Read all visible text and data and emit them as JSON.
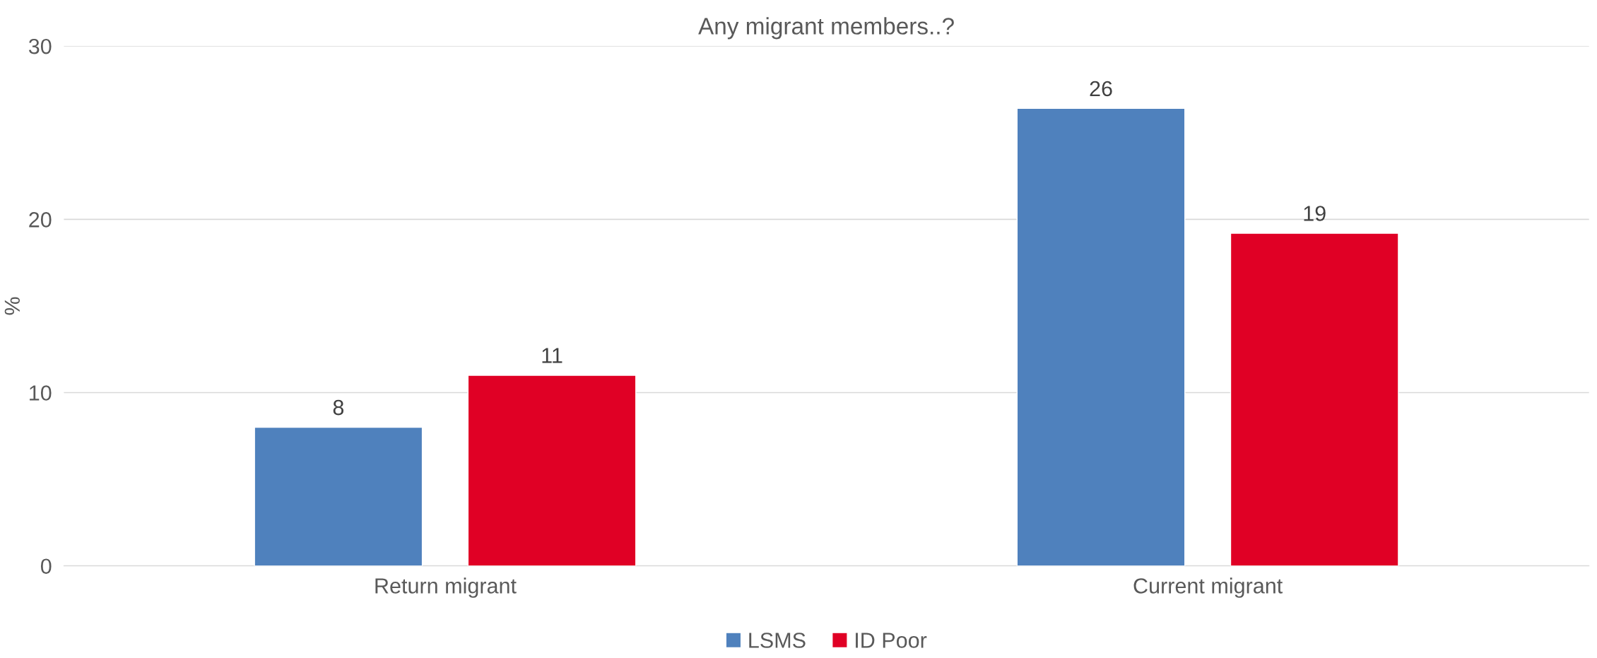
{
  "chart_data": {
    "type": "bar",
    "title": "Any migrant members..?",
    "ylabel": "%",
    "categories": [
      "Return migrant",
      "Current migrant"
    ],
    "series": [
      {
        "name": "LSMS",
        "color": "#4f81bd",
        "values": [
          8,
          26.4
        ],
        "value_labels": [
          "8",
          "26"
        ]
      },
      {
        "name": "ID Poor",
        "color": "#e00025",
        "values": [
          11,
          19.2
        ],
        "value_labels": [
          "11",
          "19"
        ]
      }
    ],
    "ylim": [
      0,
      30
    ],
    "yticks": [
      0,
      10,
      20,
      30
    ],
    "grid": "y",
    "legend": "bottom"
  }
}
